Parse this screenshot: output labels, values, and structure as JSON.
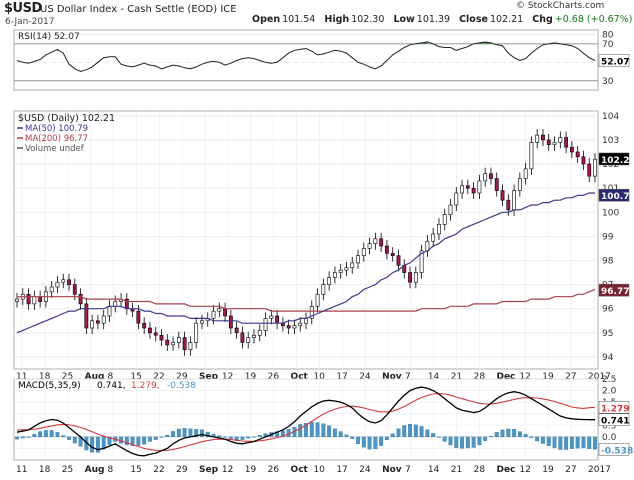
{
  "header": {
    "symbol": "$USD",
    "name": "US Dollar Index - Cash Settle (EOD)",
    "exchange": "ICE",
    "date": "6-Jan-2017",
    "credit": "© StockCharts.com",
    "open_label": "Open",
    "open": "101.54",
    "high_label": "High",
    "high": "102.30",
    "low_label": "Low",
    "low": "101.39",
    "close_label": "Close",
    "close": "102.21",
    "chg_label": "Chg",
    "chg": "+0.68 (+0.67%)"
  },
  "colors": {
    "up": "#ffffff",
    "down": "#b0134b",
    "candle_outline": "#000000",
    "ma50": "#3b3b8f",
    "ma200": "#a8404f",
    "rsi_fill": "#2f8a3c",
    "macd_line": "#000000",
    "signal_line": "#d23a3a",
    "histogram": "#4a96c8",
    "grid": "#e6e6e6",
    "price_badge": "#000000",
    "ma50_badge": "#2a2a6e",
    "ma200_badge": "#7a2231"
  },
  "chart_data": [
    {
      "panel": "rsi",
      "type": "line",
      "legend": "RSI(14) 52.07",
      "ylim": [
        20,
        85
      ],
      "yticks": [
        "30",
        "50",
        "70",
        "80"
      ],
      "reference_lines": [
        30,
        50,
        70
      ],
      "value_badge": "52.07",
      "values": [
        52,
        50,
        49,
        51,
        53,
        58,
        61,
        64,
        60,
        48,
        43,
        40,
        42,
        45,
        50,
        55,
        56,
        56,
        48,
        46,
        45,
        47,
        49,
        47,
        46,
        43,
        45,
        47,
        46,
        44,
        43,
        45,
        48,
        50,
        51,
        50,
        47,
        49,
        52,
        54,
        55,
        54,
        52,
        50,
        49,
        50,
        55,
        60,
        63,
        64,
        65,
        62,
        58,
        59,
        61,
        63,
        62,
        60,
        55,
        50,
        48,
        45,
        43,
        46,
        52,
        58,
        62,
        66,
        69,
        70,
        71,
        72,
        70,
        67,
        66,
        66,
        63,
        65,
        67,
        70,
        71,
        72,
        71,
        69,
        68,
        60,
        55,
        52,
        54,
        60,
        65,
        69,
        70,
        71,
        70,
        69,
        68,
        65,
        60,
        55,
        52
      ]
    },
    {
      "panel": "price",
      "type": "candlestick",
      "legend": [
        "$USD (Daily) 102.21",
        "MA(50) 100.79",
        "MA(200) 96.77",
        "Volume undef"
      ],
      "ylim": [
        93.5,
        104.2
      ],
      "yticks": [
        "94",
        "95",
        "96",
        "97",
        "98",
        "99",
        "100",
        "101",
        "102",
        "103",
        "104"
      ],
      "x_labels": [
        "11",
        "18",
        "25",
        "Aug",
        "8",
        "15",
        "22",
        "29",
        "Sep",
        "12",
        "19",
        "26",
        "Oct",
        "10",
        "17",
        "24",
        "Nov",
        "7",
        "14",
        "21",
        "28",
        "Dec",
        "12",
        "19",
        "27",
        "2017"
      ],
      "value_badges": {
        "close": "102.21",
        "ma50": "100.79",
        "ma200": "96.77"
      },
      "close": [
        96.4,
        96.6,
        96.2,
        96.5,
        96.3,
        96.7,
        96.9,
        97.1,
        97.2,
        97.0,
        96.6,
        96.2,
        95.2,
        95.5,
        95.4,
        95.7,
        96.1,
        96.3,
        96.4,
        96.0,
        95.9,
        95.4,
        95.2,
        95.0,
        94.9,
        94.7,
        94.5,
        94.6,
        94.8,
        94.3,
        94.6,
        95.4,
        95.5,
        95.6,
        95.9,
        96.0,
        95.7,
        95.2,
        95.0,
        94.6,
        94.8,
        94.9,
        95.1,
        95.6,
        95.7,
        95.4,
        95.3,
        95.2,
        95.3,
        95.4,
        95.6,
        96.1,
        96.6,
        97.0,
        97.3,
        97.5,
        97.6,
        97.7,
        97.9,
        98.2,
        98.5,
        98.7,
        98.9,
        98.6,
        98.3,
        98.2,
        97.8,
        97.5,
        97.1,
        97.5,
        98.4,
        98.8,
        99.1,
        99.5,
        99.9,
        100.3,
        100.8,
        101.1,
        101.0,
        100.8,
        101.3,
        101.6,
        101.4,
        100.9,
        100.5,
        100.1,
        100.9,
        101.4,
        101.8,
        102.9,
        103.2,
        103.0,
        102.8,
        102.9,
        103.1,
        102.7,
        102.5,
        102.3,
        102.0,
        101.5,
        102.2
      ],
      "ma50": [
        95.0,
        95.1,
        95.2,
        95.3,
        95.4,
        95.5,
        95.6,
        95.7,
        95.8,
        95.9,
        95.9,
        96.0,
        96.0,
        96.0,
        96.0,
        96.0,
        96.1,
        96.1,
        96.1,
        96.0,
        96.0,
        96.0,
        95.9,
        95.9,
        95.8,
        95.8,
        95.7,
        95.7,
        95.7,
        95.7,
        95.6,
        95.6,
        95.6,
        95.6,
        95.5,
        95.5,
        95.5,
        95.5,
        95.5,
        95.4,
        95.4,
        95.4,
        95.4,
        95.4,
        95.4,
        95.4,
        95.4,
        95.5,
        95.5,
        95.6,
        95.6,
        95.7,
        95.8,
        95.9,
        96.0,
        96.1,
        96.2,
        96.3,
        96.5,
        96.6,
        96.8,
        96.9,
        97.0,
        97.2,
        97.3,
        97.5,
        97.6,
        97.8,
        97.9,
        98.1,
        98.3,
        98.4,
        98.6,
        98.7,
        98.9,
        99.0,
        99.1,
        99.3,
        99.4,
        99.5,
        99.6,
        99.7,
        99.8,
        99.9,
        100.0,
        100.0,
        100.1,
        100.1,
        100.2,
        100.3,
        100.3,
        100.4,
        100.4,
        100.5,
        100.5,
        100.6,
        100.6,
        100.7,
        100.7,
        100.8,
        100.8
      ],
      "ma200": [
        96.5,
        96.5,
        96.5,
        96.5,
        96.5,
        96.5,
        96.5,
        96.5,
        96.5,
        96.5,
        96.5,
        96.5,
        96.4,
        96.4,
        96.4,
        96.4,
        96.4,
        96.4,
        96.4,
        96.3,
        96.3,
        96.3,
        96.3,
        96.3,
        96.2,
        96.2,
        96.2,
        96.2,
        96.2,
        96.2,
        96.1,
        96.1,
        96.1,
        96.1,
        96.1,
        96.1,
        96.0,
        96.0,
        96.0,
        96.0,
        96.0,
        96.0,
        96.0,
        96.0,
        95.9,
        95.9,
        95.9,
        95.9,
        95.9,
        95.9,
        95.9,
        95.9,
        95.9,
        95.9,
        95.9,
        95.9,
        95.9,
        95.9,
        95.9,
        95.9,
        95.9,
        95.9,
        95.9,
        95.9,
        95.9,
        95.9,
        95.9,
        95.9,
        95.9,
        95.9,
        96.0,
        96.0,
        96.0,
        96.0,
        96.0,
        96.1,
        96.1,
        96.1,
        96.1,
        96.2,
        96.2,
        96.2,
        96.2,
        96.2,
        96.3,
        96.3,
        96.3,
        96.3,
        96.3,
        96.4,
        96.4,
        96.4,
        96.4,
        96.5,
        96.5,
        96.5,
        96.5,
        96.6,
        96.6,
        96.7,
        96.8
      ]
    },
    {
      "panel": "macd",
      "type": "line",
      "legend": [
        "MACD(5,35,9)",
        "0.741,",
        "1.279,",
        "-0.538"
      ],
      "ylim": [
        -1.0,
        2.5
      ],
      "yticks": [
        "-0.5",
        "0.0",
        "0.5",
        "1.0",
        "1.5",
        "2.0",
        "2.5"
      ],
      "x_labels": [
        "11",
        "18",
        "25",
        "Aug",
        "8",
        "15",
        "22",
        "29",
        "Sep",
        "12",
        "19",
        "26",
        "Oct",
        "10",
        "17",
        "24",
        "Nov",
        "7",
        "14",
        "21",
        "28",
        "Dec",
        "12",
        "19",
        "27",
        "2017"
      ],
      "value_badges": {
        "signal": "1.279",
        "macd": "0.741",
        "histogram": "-0.538"
      },
      "macd": [
        0.2,
        0.25,
        0.3,
        0.45,
        0.6,
        0.7,
        0.75,
        0.72,
        0.6,
        0.4,
        0.2,
        0.0,
        -0.25,
        -0.45,
        -0.55,
        -0.5,
        -0.4,
        -0.3,
        -0.45,
        -0.6,
        -0.72,
        -0.8,
        -0.82,
        -0.75,
        -0.7,
        -0.6,
        -0.5,
        -0.3,
        -0.15,
        -0.05,
        0.0,
        0.05,
        0.1,
        0.05,
        0.0,
        -0.05,
        -0.1,
        -0.2,
        -0.28,
        -0.3,
        -0.25,
        -0.2,
        -0.1,
        0.0,
        0.1,
        0.2,
        0.3,
        0.45,
        0.65,
        0.9,
        1.1,
        1.3,
        1.45,
        1.55,
        1.58,
        1.55,
        1.5,
        1.4,
        1.25,
        1.0,
        0.8,
        0.65,
        0.6,
        0.7,
        0.95,
        1.25,
        1.55,
        1.8,
        2.0,
        2.1,
        2.15,
        2.1,
        2.0,
        1.85,
        1.65,
        1.45,
        1.25,
        1.15,
        1.1,
        1.05,
        1.1,
        1.25,
        1.45,
        1.65,
        1.8,
        1.9,
        1.95,
        1.9,
        1.8,
        1.65,
        1.5,
        1.35,
        1.2,
        1.05,
        0.9,
        0.82,
        0.78,
        0.76,
        0.75,
        0.74,
        0.741
      ],
      "signal": [
        0.3,
        0.3,
        0.31,
        0.33,
        0.37,
        0.42,
        0.47,
        0.52,
        0.54,
        0.52,
        0.47,
        0.41,
        0.32,
        0.22,
        0.12,
        0.03,
        -0.05,
        -0.1,
        -0.17,
        -0.25,
        -0.34,
        -0.42,
        -0.5,
        -0.55,
        -0.58,
        -0.59,
        -0.58,
        -0.54,
        -0.49,
        -0.42,
        -0.35,
        -0.28,
        -0.21,
        -0.16,
        -0.12,
        -0.1,
        -0.1,
        -0.12,
        -0.15,
        -0.18,
        -0.19,
        -0.19,
        -0.17,
        -0.14,
        -0.09,
        -0.03,
        0.04,
        0.12,
        0.23,
        0.36,
        0.51,
        0.67,
        0.83,
        0.98,
        1.1,
        1.2,
        1.27,
        1.31,
        1.33,
        1.3,
        1.25,
        1.18,
        1.12,
        1.08,
        1.08,
        1.11,
        1.2,
        1.31,
        1.45,
        1.58,
        1.7,
        1.79,
        1.85,
        1.87,
        1.85,
        1.8,
        1.72,
        1.65,
        1.58,
        1.51,
        1.45,
        1.42,
        1.42,
        1.45,
        1.5,
        1.56,
        1.62,
        1.67,
        1.69,
        1.69,
        1.68,
        1.64,
        1.59,
        1.53,
        1.45,
        1.37,
        1.29,
        1.25,
        1.23,
        1.26,
        1.279
      ],
      "histogram": [
        -0.1,
        -0.05,
        -0.01,
        0.12,
        0.23,
        0.28,
        0.28,
        0.2,
        0.06,
        -0.12,
        -0.27,
        -0.41,
        -0.57,
        -0.67,
        -0.67,
        -0.53,
        -0.35,
        -0.2,
        -0.28,
        -0.35,
        -0.38,
        -0.38,
        -0.32,
        -0.2,
        -0.12,
        -0.01,
        0.08,
        0.24,
        0.34,
        0.37,
        0.35,
        0.33,
        0.31,
        0.21,
        0.12,
        0.05,
        0.0,
        -0.08,
        -0.13,
        -0.12,
        -0.06,
        -0.01,
        0.07,
        0.14,
        0.19,
        0.23,
        0.26,
        0.33,
        0.42,
        0.54,
        0.59,
        0.63,
        0.62,
        0.57,
        0.48,
        0.35,
        0.23,
        0.09,
        -0.08,
        -0.3,
        -0.45,
        -0.53,
        -0.52,
        -0.38,
        -0.13,
        0.14,
        0.35,
        0.49,
        0.55,
        0.52,
        0.45,
        0.31,
        0.15,
        -0.02,
        -0.2,
        -0.35,
        -0.47,
        -0.5,
        -0.48,
        -0.46,
        -0.35,
        -0.17,
        0.03,
        0.2,
        0.3,
        0.34,
        0.33,
        0.23,
        0.11,
        -0.04,
        -0.18,
        -0.29,
        -0.39,
        -0.48,
        -0.55,
        -0.55,
        -0.51,
        -0.49,
        -0.48,
        -0.52,
        -0.538
      ]
    }
  ]
}
